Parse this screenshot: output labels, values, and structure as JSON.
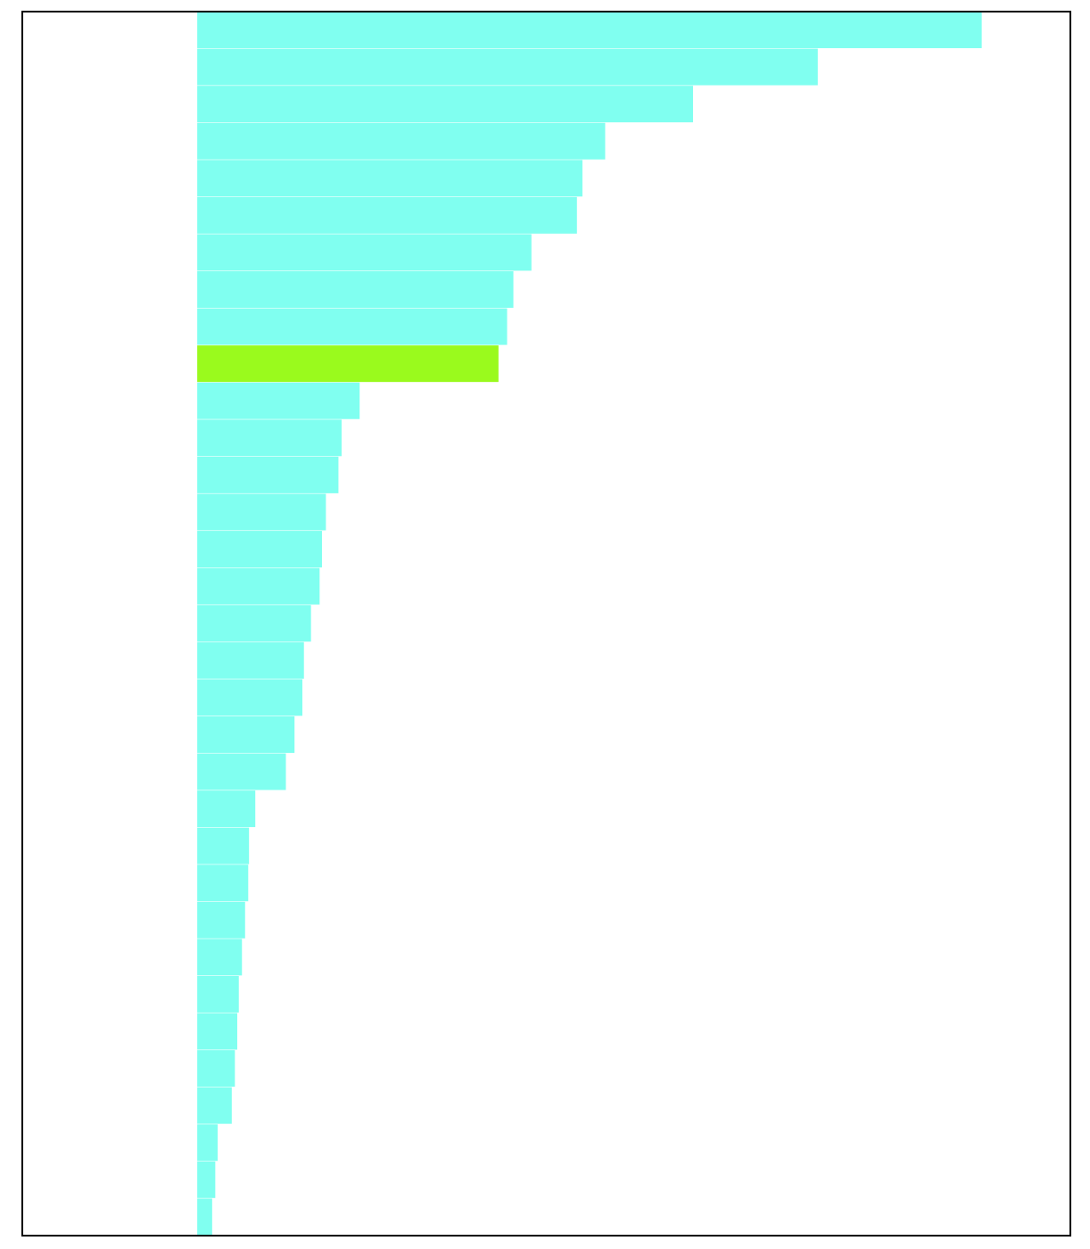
{
  "chart_data": {
    "type": "barh",
    "values": [
      100,
      79.1,
      63.2,
      52,
      49.1,
      48.4,
      42.6,
      40.3,
      39.5,
      38.4,
      20.7,
      18.4,
      18,
      16.4,
      15.9,
      15.6,
      14.5,
      13.6,
      13.4,
      12.4,
      11.3,
      7.4,
      6.6,
      6.5,
      6.1,
      5.7,
      5.3,
      5.1,
      4.8,
      4.4,
      2.6,
      2.3,
      1.9
    ],
    "colors": [
      "#80fff0",
      "#80fff0",
      "#80fff0",
      "#80fff0",
      "#80fff0",
      "#80fff0",
      "#80fff0",
      "#80fff0",
      "#80fff0",
      "#9afa1d",
      "#80fff0",
      "#80fff0",
      "#80fff0",
      "#80fff0",
      "#80fff0",
      "#80fff0",
      "#80fff0",
      "#80fff0",
      "#80fff0",
      "#80fff0",
      "#80fff0",
      "#80fff0",
      "#80fff0",
      "#80fff0",
      "#80fff0",
      "#80fff0",
      "#80fff0",
      "#80fff0",
      "#80fff0",
      "#80fff0",
      "#80fff0",
      "#80fff0",
      "#80fff0"
    ],
    "xlim": [
      -22.3,
      111.3
    ]
  }
}
